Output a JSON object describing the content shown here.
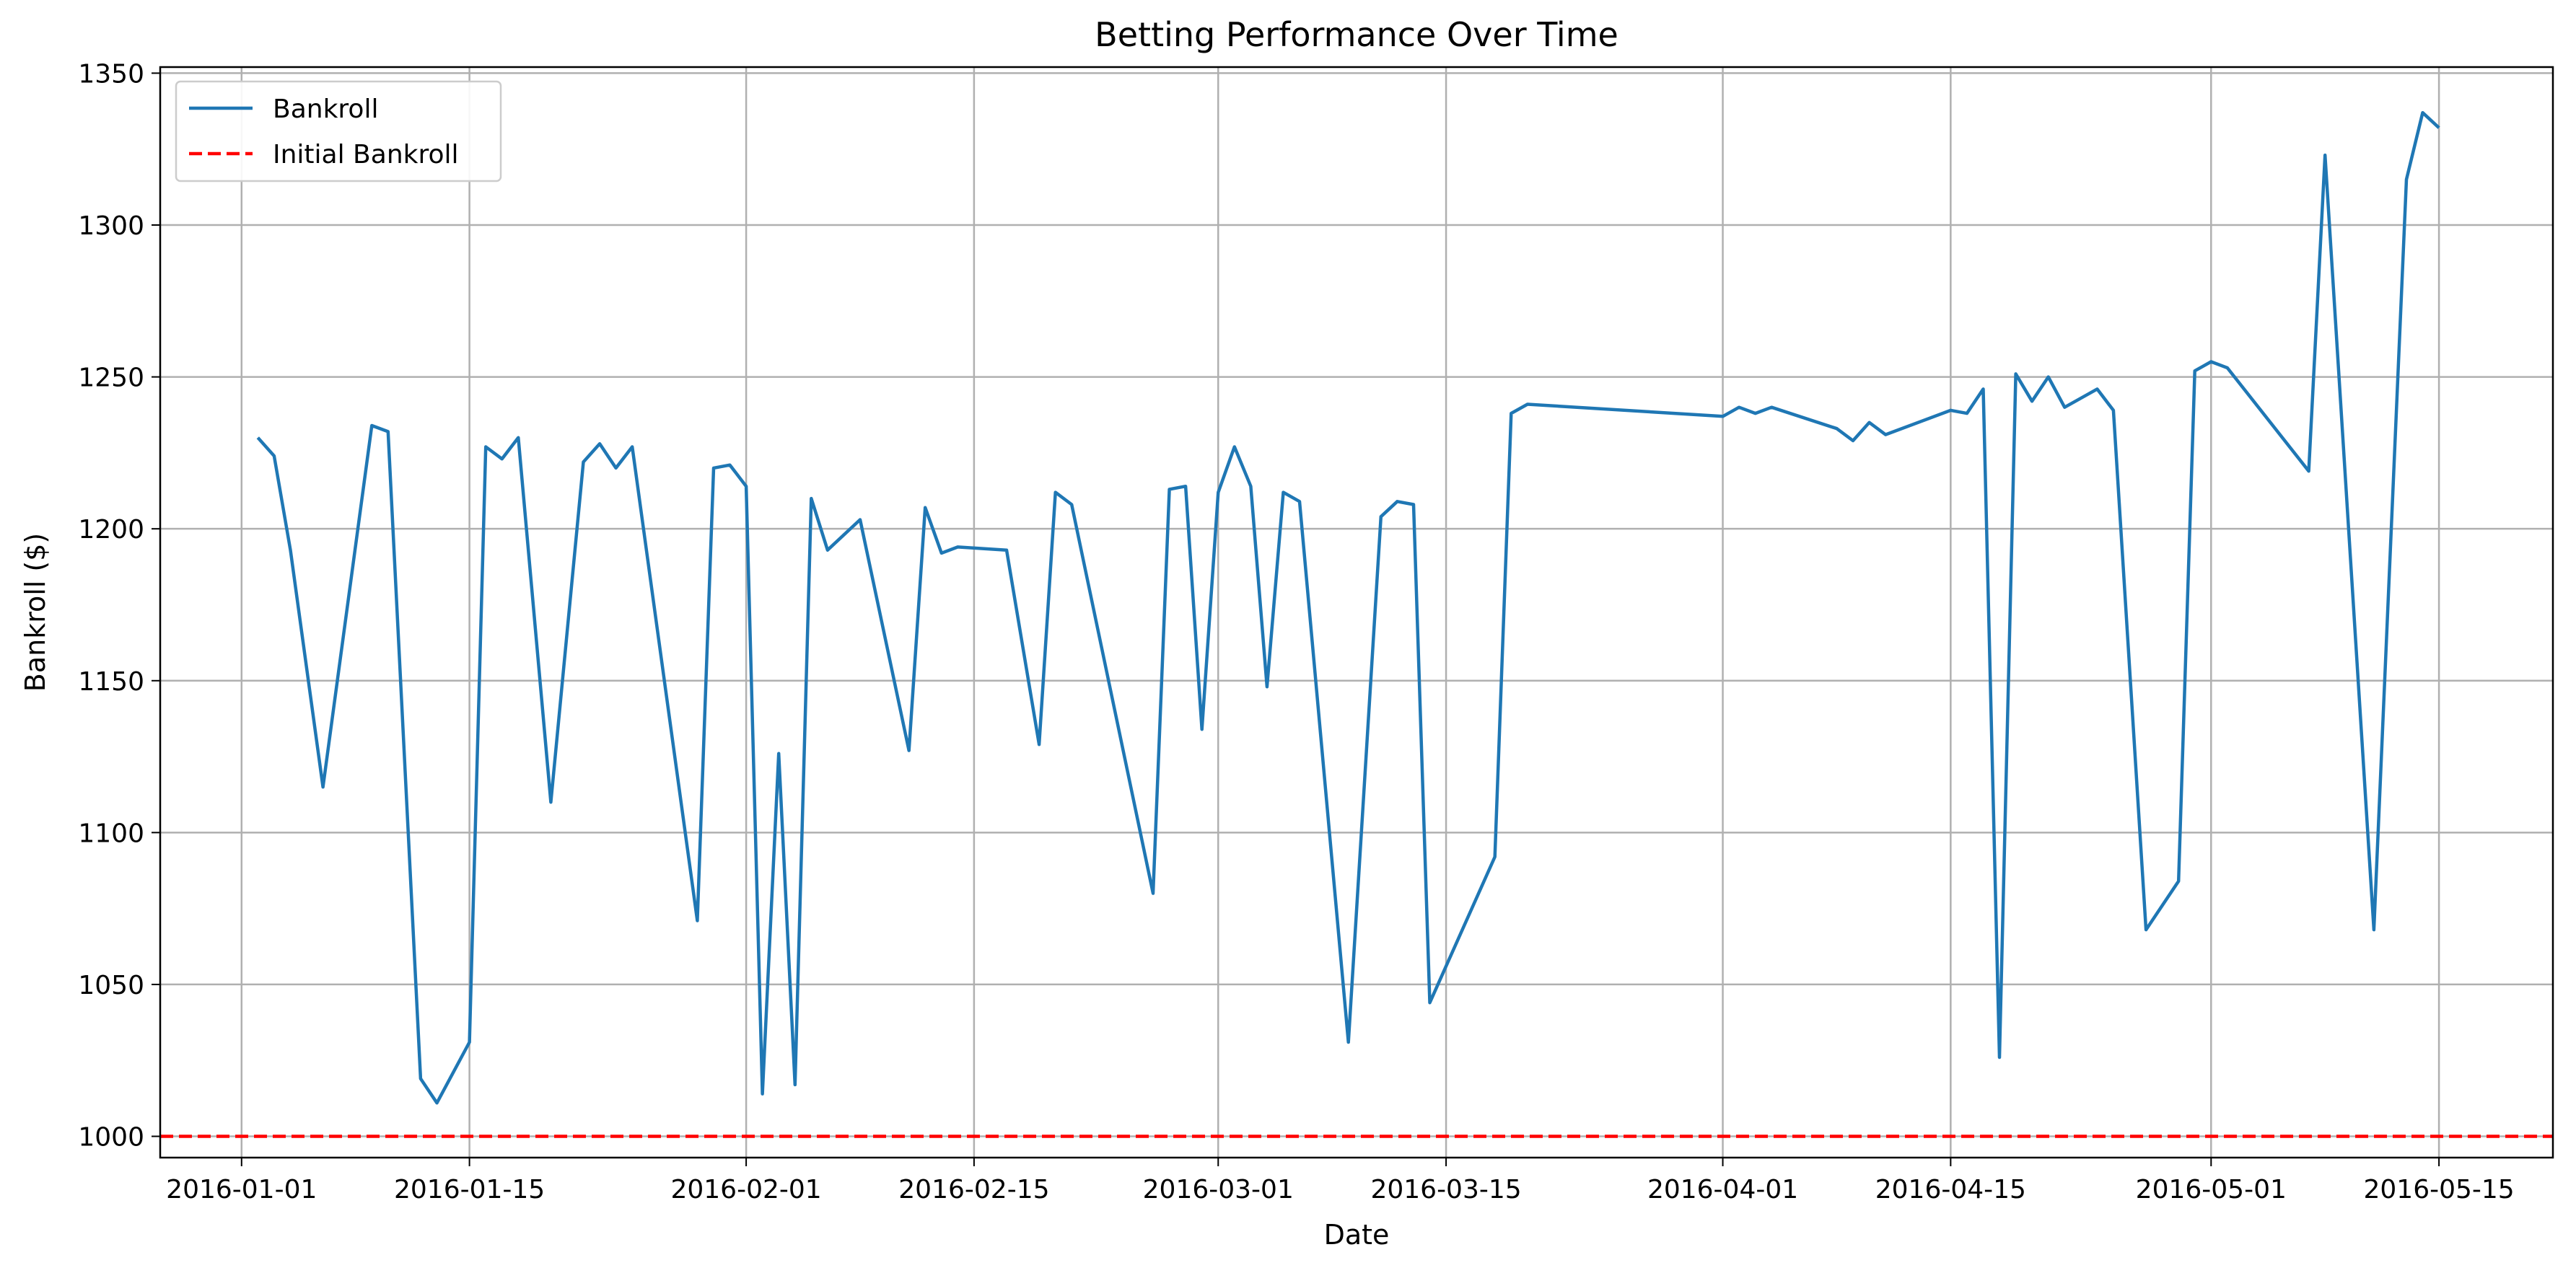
{
  "chart_data": {
    "type": "line",
    "title": "Betting Performance Over Time",
    "xlabel": "Date",
    "ylabel": "Bankroll ($)",
    "xlim": [
      "2015-12-27",
      "2016-05-22"
    ],
    "ylim": [
      993,
      1352
    ],
    "x_ticks": [
      "2016-01-01",
      "2016-01-15",
      "2016-02-01",
      "2016-02-15",
      "2016-03-01",
      "2016-03-15",
      "2016-04-01",
      "2016-04-15",
      "2016-05-01",
      "2016-05-15"
    ],
    "y_ticks": [
      1000,
      1050,
      1100,
      1150,
      1200,
      1250,
      1300,
      1350
    ],
    "grid": true,
    "legend_position": "top-left",
    "series": [
      {
        "name": "Bankroll",
        "color": "#1f77b4",
        "style": "solid",
        "points": [
          [
            "2016-01-02",
            1230
          ],
          [
            "2016-01-03",
            1224
          ],
          [
            "2016-01-04",
            1193
          ],
          [
            "2016-01-06",
            1115
          ],
          [
            "2016-01-09",
            1234
          ],
          [
            "2016-01-10",
            1232
          ],
          [
            "2016-01-12",
            1019
          ],
          [
            "2016-01-13",
            1011
          ],
          [
            "2016-01-15",
            1031
          ],
          [
            "2016-01-16",
            1227
          ],
          [
            "2016-01-17",
            1223
          ],
          [
            "2016-01-18",
            1230
          ],
          [
            "2016-01-20",
            1110
          ],
          [
            "2016-01-22",
            1222
          ],
          [
            "2016-01-23",
            1228
          ],
          [
            "2016-01-24",
            1220
          ],
          [
            "2016-01-25",
            1227
          ],
          [
            "2016-01-29",
            1071
          ],
          [
            "2016-01-30",
            1220
          ],
          [
            "2016-01-31",
            1221
          ],
          [
            "2016-02-01",
            1214
          ],
          [
            "2016-02-02",
            1014
          ],
          [
            "2016-02-03",
            1126
          ],
          [
            "2016-02-04",
            1017
          ],
          [
            "2016-02-05",
            1210
          ],
          [
            "2016-02-06",
            1193
          ],
          [
            "2016-02-08",
            1203
          ],
          [
            "2016-02-11",
            1127
          ],
          [
            "2016-02-12",
            1207
          ],
          [
            "2016-02-13",
            1192
          ],
          [
            "2016-02-14",
            1194
          ],
          [
            "2016-02-17",
            1193
          ],
          [
            "2016-02-19",
            1129
          ],
          [
            "2016-02-20",
            1212
          ],
          [
            "2016-02-21",
            1208
          ],
          [
            "2016-02-26",
            1080
          ],
          [
            "2016-02-27",
            1213
          ],
          [
            "2016-02-28",
            1214
          ],
          [
            "2016-02-29",
            1134
          ],
          [
            "2016-03-01",
            1212
          ],
          [
            "2016-03-02",
            1227
          ],
          [
            "2016-03-03",
            1214
          ],
          [
            "2016-03-04",
            1148
          ],
          [
            "2016-03-05",
            1212
          ],
          [
            "2016-03-06",
            1209
          ],
          [
            "2016-03-09",
            1031
          ],
          [
            "2016-03-11",
            1204
          ],
          [
            "2016-03-12",
            1209
          ],
          [
            "2016-03-13",
            1208
          ],
          [
            "2016-03-14",
            1044
          ],
          [
            "2016-03-18",
            1092
          ],
          [
            "2016-03-19",
            1238
          ],
          [
            "2016-03-20",
            1241
          ],
          [
            "2016-04-01",
            1237
          ],
          [
            "2016-04-02",
            1240
          ],
          [
            "2016-04-03",
            1238
          ],
          [
            "2016-04-04",
            1240
          ],
          [
            "2016-04-08",
            1233
          ],
          [
            "2016-04-09",
            1229
          ],
          [
            "2016-04-10",
            1235
          ],
          [
            "2016-04-11",
            1231
          ],
          [
            "2016-04-15",
            1239
          ],
          [
            "2016-04-16",
            1238
          ],
          [
            "2016-04-17",
            1246
          ],
          [
            "2016-04-18",
            1026
          ],
          [
            "2016-04-19",
            1251
          ],
          [
            "2016-04-20",
            1242
          ],
          [
            "2016-04-21",
            1250
          ],
          [
            "2016-04-22",
            1240
          ],
          [
            "2016-04-24",
            1246
          ],
          [
            "2016-04-25",
            1239
          ],
          [
            "2016-04-27",
            1068
          ],
          [
            "2016-04-29",
            1084
          ],
          [
            "2016-04-30",
            1252
          ],
          [
            "2016-05-01",
            1255
          ],
          [
            "2016-05-02",
            1253
          ],
          [
            "2016-05-07",
            1219
          ],
          [
            "2016-05-08",
            1323
          ],
          [
            "2016-05-11",
            1068
          ],
          [
            "2016-05-13",
            1315
          ],
          [
            "2016-05-14",
            1337
          ],
          [
            "2016-05-15",
            1332
          ]
        ]
      },
      {
        "name": "Initial Bankroll",
        "color": "#ff0000",
        "style": "dashed",
        "y": 1000
      }
    ]
  }
}
